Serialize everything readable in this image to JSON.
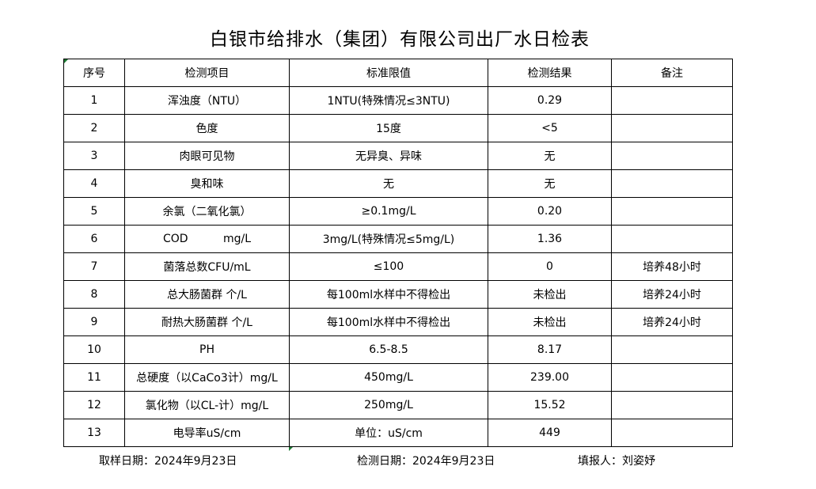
{
  "title": "白银市给排水（集团）有限公司出厂水日检表",
  "headers": [
    "序号",
    "检测项目",
    "标准限值",
    "检测结果",
    "备注"
  ],
  "rows": [
    [
      "1",
      "浑浊度（NTU）",
      "1NTU(特殊情况≤3NTU)",
      "0.29",
      ""
    ],
    [
      "2",
      "色度",
      "15度",
      "<5",
      ""
    ],
    [
      "3",
      "肉眼可见物",
      "无异臭、异味",
      "无",
      ""
    ],
    [
      "4",
      "臭和味",
      "无",
      "无",
      ""
    ],
    [
      "5",
      "余氯（二氧化氯）",
      "≥0.1mg/L",
      "0.20",
      ""
    ],
    [
      "6",
      "COD          mg/L",
      "3mg/L(特殊情况≤5mg/L)",
      "1.36",
      ""
    ],
    [
      "7",
      "菌落总数CFU/mL",
      "≤100",
      "0",
      "培养48小时"
    ],
    [
      "8",
      "总大肠菌群 个/L",
      "每100ml水样中不得检出",
      "未检出",
      "培养24小时"
    ],
    [
      "9",
      "耐热大肠菌群 个/L",
      "每100ml水样中不得检出",
      "未检出",
      "培养24小时"
    ],
    [
      "10",
      "PH",
      "6.5-8.5",
      "8.17",
      ""
    ],
    [
      "11",
      "总硬度（以CaCo3计）mg/L",
      "450mg/L",
      "239.00",
      ""
    ],
    [
      "12",
      "氯化物（以CL-计）mg/L",
      "250mg/L",
      "15.52",
      ""
    ],
    [
      "13",
      "电导率uS/cm",
      "单位：uS/cm",
      "449",
      ""
    ]
  ],
  "footer": {
    "sampling_date": "取样日期：2024年9月23日",
    "test_date": "检测日期：2024年9月23日",
    "reporter": "填报人：刘姿妤"
  }
}
